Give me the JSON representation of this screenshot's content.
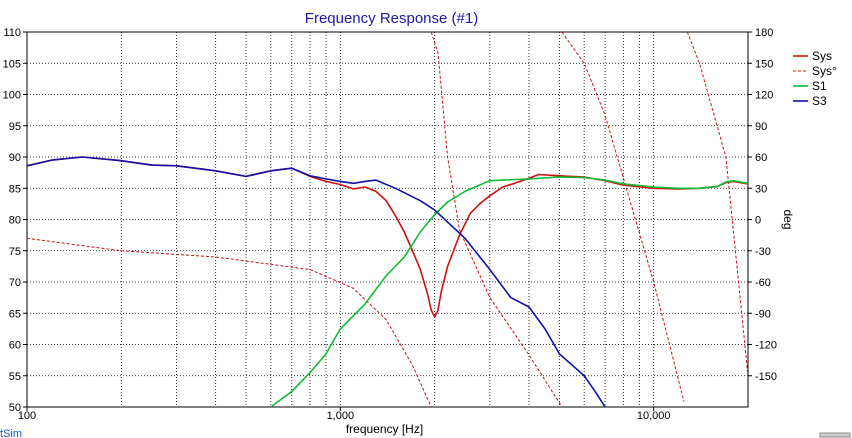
{
  "chart_data": {
    "type": "line",
    "title": "Frequency Response (#1)",
    "xlabel": "frequency [Hz]",
    "ylabel": "",
    "y2label": "deg",
    "xscale": "log",
    "xlim": [
      100,
      20000
    ],
    "ylim": [
      50,
      110
    ],
    "y2lim": [
      -180,
      180
    ],
    "xticks": [
      {
        "v": 100,
        "label": "100"
      },
      {
        "v": 1000,
        "label": "1,000"
      },
      {
        "v": 10000,
        "label": "10,000"
      }
    ],
    "yticks": [
      50,
      55,
      60,
      65,
      70,
      75,
      80,
      85,
      90,
      95,
      100,
      105,
      110
    ],
    "y2ticks": [
      -150,
      -120,
      -90,
      -60,
      -30,
      0,
      30,
      60,
      90,
      120,
      150,
      180
    ],
    "grid": true,
    "legend_position": "top-right",
    "series": [
      {
        "name": "Sys",
        "axis": "y",
        "style": "solid",
        "width": 1.6,
        "color": "#cc1111",
        "points": [
          [
            100,
            88.6
          ],
          [
            120,
            89.5
          ],
          [
            150,
            90.0
          ],
          [
            200,
            89.4
          ],
          [
            250,
            88.7
          ],
          [
            300,
            88.6
          ],
          [
            400,
            87.8
          ],
          [
            500,
            86.9
          ],
          [
            600,
            87.8
          ],
          [
            700,
            88.2
          ],
          [
            800,
            86.9
          ],
          [
            900,
            86.1
          ],
          [
            1000,
            85.6
          ],
          [
            1100,
            84.9
          ],
          [
            1200,
            85.2
          ],
          [
            1300,
            84.5
          ],
          [
            1400,
            83.0
          ],
          [
            1500,
            80.6
          ],
          [
            1600,
            78.0
          ],
          [
            1700,
            75.0
          ],
          [
            1800,
            72.0
          ],
          [
            1900,
            68.0
          ],
          [
            1950,
            65.5
          ],
          [
            2000,
            64.4
          ],
          [
            2050,
            65.5
          ],
          [
            2100,
            68.5
          ],
          [
            2200,
            72.5
          ],
          [
            2400,
            77.5
          ],
          [
            2600,
            81.0
          ],
          [
            2800,
            82.6
          ],
          [
            3000,
            83.8
          ],
          [
            3300,
            85.2
          ],
          [
            3600,
            85.8
          ],
          [
            4000,
            86.6
          ],
          [
            4300,
            87.2
          ],
          [
            5000,
            87.0
          ],
          [
            6000,
            86.8
          ],
          [
            7000,
            86.2
          ],
          [
            8000,
            85.5
          ],
          [
            10000,
            85.0
          ],
          [
            12000,
            84.9
          ],
          [
            14000,
            85.0
          ],
          [
            16000,
            85.3
          ],
          [
            17000,
            85.9
          ],
          [
            18000,
            86.1
          ],
          [
            20000,
            85.7
          ]
        ]
      },
      {
        "name": "Sys°",
        "axis": "y2",
        "style": "dashed",
        "width": 1,
        "color": "#cc1111",
        "points": [
          [
            100,
            -18
          ],
          [
            200,
            -30
          ],
          [
            400,
            -36
          ],
          [
            800,
            -48
          ],
          [
            1100,
            -66
          ],
          [
            1400,
            -96
          ],
          [
            1700,
            -140
          ],
          [
            1950,
            -180
          ],
          [
            null,
            null
          ],
          [
            1950,
            180
          ],
          [
            2050,
            160
          ],
          [
            2200,
            60
          ],
          [
            2400,
            -10
          ],
          [
            3000,
            -75
          ],
          [
            4000,
            -130
          ],
          [
            5100,
            -180
          ],
          [
            null,
            null
          ],
          [
            5100,
            180
          ],
          [
            6000,
            150
          ],
          [
            7000,
            100
          ],
          [
            8000,
            40
          ],
          [
            10000,
            -60
          ],
          [
            12500,
            -175
          ],
          [
            null,
            null
          ],
          [
            12800,
            180
          ],
          [
            14000,
            150
          ],
          [
            17000,
            60
          ],
          [
            20000,
            -150
          ]
        ]
      },
      {
        "name": "S1",
        "axis": "y",
        "style": "solid",
        "width": 1.6,
        "color": "#11bb33",
        "points": [
          [
            600,
            50
          ],
          [
            700,
            52.5
          ],
          [
            800,
            55.5
          ],
          [
            900,
            58.5
          ],
          [
            1000,
            62.5
          ],
          [
            1200,
            66.5
          ],
          [
            1400,
            71
          ],
          [
            1600,
            74
          ],
          [
            1800,
            78
          ],
          [
            2000,
            80.8
          ],
          [
            2200,
            82.8
          ],
          [
            2500,
            84.5
          ],
          [
            3000,
            86.2
          ],
          [
            4000,
            86.5
          ],
          [
            5000,
            86.8
          ],
          [
            6000,
            86.7
          ],
          [
            7000,
            86.3
          ],
          [
            8000,
            85.7
          ],
          [
            10000,
            85.2
          ],
          [
            12000,
            85.0
          ],
          [
            14000,
            85.0
          ],
          [
            16000,
            85.3
          ],
          [
            17000,
            86.0
          ],
          [
            18000,
            86.2
          ],
          [
            20000,
            85.8
          ]
        ]
      },
      {
        "name": "S3",
        "axis": "y",
        "style": "solid",
        "width": 1.6,
        "color": "#1111aa",
        "points": [
          [
            100,
            88.6
          ],
          [
            120,
            89.5
          ],
          [
            150,
            90.0
          ],
          [
            200,
            89.4
          ],
          [
            250,
            88.7
          ],
          [
            300,
            88.6
          ],
          [
            400,
            87.8
          ],
          [
            500,
            86.9
          ],
          [
            600,
            87.8
          ],
          [
            700,
            88.2
          ],
          [
            800,
            87.0
          ],
          [
            900,
            86.5
          ],
          [
            1000,
            86.1
          ],
          [
            1100,
            85.8
          ],
          [
            1200,
            86.1
          ],
          [
            1300,
            86.3
          ],
          [
            1500,
            85.0
          ],
          [
            1800,
            83.0
          ],
          [
            2000,
            81.5
          ],
          [
            2500,
            77.0
          ],
          [
            3000,
            72.0
          ],
          [
            3500,
            67.5
          ],
          [
            4000,
            66.0
          ],
          [
            4500,
            62.5
          ],
          [
            5000,
            58.5
          ],
          [
            6000,
            55
          ],
          [
            6500,
            52.5
          ],
          [
            7000,
            50
          ]
        ]
      }
    ]
  },
  "branding": {
    "watermark_text": "tSim"
  }
}
